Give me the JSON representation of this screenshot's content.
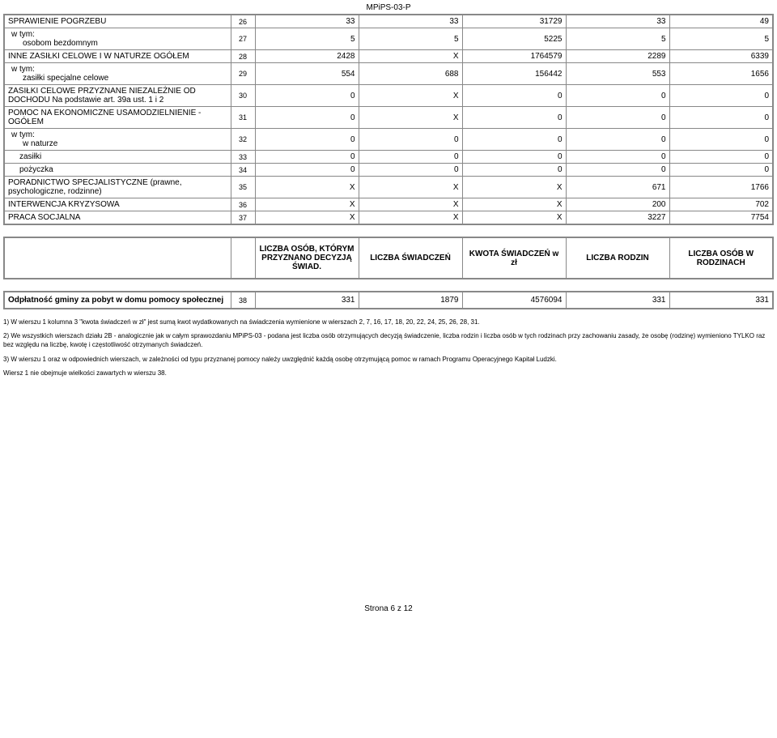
{
  "doc_code": "MPiPS-03-P",
  "table1": {
    "col_widths": {
      "label": 280,
      "num": 30
    },
    "rows": [
      {
        "label": "SPRAWIENIE POGRZEBU",
        "num": "26",
        "c1": "33",
        "c2": "33",
        "c3": "31729",
        "c4": "33",
        "c5": "49"
      },
      {
        "label_lines": [
          "w tym:",
          "osobom bezdomnym"
        ],
        "indent": 1,
        "num": "27",
        "c1": "5",
        "c2": "5",
        "c3": "5225",
        "c4": "5",
        "c5": "5"
      },
      {
        "label": "INNE ZASIŁKI CELOWE I W NATURZE OGÓŁEM",
        "num": "28",
        "c1": "2428",
        "c2": "X",
        "c3": "1764579",
        "c4": "2289",
        "c5": "6339"
      },
      {
        "label_lines": [
          "w tym:",
          "zasiłki specjalne celowe"
        ],
        "indent": 1,
        "num": "29",
        "c1": "554",
        "c2": "688",
        "c3": "156442",
        "c4": "553",
        "c5": "1656"
      },
      {
        "label": "ZASIŁKI CELOWE PRZYZNANE NIEZALEŻNIE OD DOCHODU Na podstawie art. 39a ust. 1 i 2",
        "num": "30",
        "c1": "0",
        "c2": "X",
        "c3": "0",
        "c4": "0",
        "c5": "0"
      },
      {
        "label": "POMOC NA EKONOMICZNE USAMODZIELNIENIE - OGÓŁEM",
        "num": "31",
        "c1": "0",
        "c2": "X",
        "c3": "0",
        "c4": "0",
        "c5": "0"
      },
      {
        "label_lines": [
          "w tym:",
          "w naturze"
        ],
        "indent": 1,
        "num": "32",
        "c1": "0",
        "c2": "0",
        "c3": "0",
        "c4": "0",
        "c5": "0"
      },
      {
        "label": "zasiłki",
        "indent": 1,
        "num": "33",
        "c1": "0",
        "c2": "0",
        "c3": "0",
        "c4": "0",
        "c5": "0"
      },
      {
        "label": "pożyczka",
        "indent": 1,
        "num": "34",
        "c1": "0",
        "c2": "0",
        "c3": "0",
        "c4": "0",
        "c5": "0"
      },
      {
        "label": "PORADNICTWO SPECJALISTYCZNE (prawne, psychologiczne, rodzinne)",
        "num": "35",
        "c1": "X",
        "c2": "X",
        "c3": "X",
        "c4": "671",
        "c5": "1766"
      },
      {
        "label": "INTERWENCJA KRYZYSOWA",
        "num": "36",
        "c1": "X",
        "c2": "X",
        "c3": "X",
        "c4": "200",
        "c5": "702"
      },
      {
        "label": "PRACA SOCJALNA",
        "num": "37",
        "c1": "X",
        "c2": "X",
        "c3": "X",
        "c4": "3227",
        "c5": "7754"
      }
    ]
  },
  "header2": {
    "h1": "LICZBA OSÓB, KTÓRYM PRZYZNANO DECYZJĄ ŚWIAD.",
    "h2": "LICZBA ŚWIADCZEŃ",
    "h3": "KWOTA ŚWIADCZEŃ w zł",
    "h4": "LICZBA RODZIN",
    "h5": "LICZBA OSÓB W RODZINACH"
  },
  "table2": {
    "row": {
      "label": "Odpłatność gminy za pobyt w domu pomocy społecznej",
      "num": "38",
      "c1": "331",
      "c2": "1879",
      "c3": "4576094",
      "c4": "331",
      "c5": "331"
    }
  },
  "notes": {
    "n1": "1) W wierszu 1 kolumna 3 \"kwota świadczeń w zł\" jest sumą kwot wydatkowanych na świadczenia wymienione w wierszach 2, 7, 16, 17, 18, 20, 22, 24, 25, 26, 28, 31.",
    "n2": "2) We wszystkich wierszach działu 2B - analogicznie jak w całym sprawozdaniu MPiPS-03 - podana jest liczba osób otrzymujących decyzją świadczenie, liczba rodzin i liczba osób w tych rodzinach przy zachowaniu zasady, że osobę (rodzinę) wymieniono TYLKO raz bez względu na liczbę, kwotę i częstotliwość otrzymanych świadczeń.",
    "n3": "3) W wierszu 1 oraz w odpowiednich wierszach, w zależności od typu przyznanej pomocy należy uwzględnić każdą osobę otrzymującą pomoc w ramach Programu Operacyjnego Kapitał Ludzki.",
    "n4": "Wiersz 1 nie obejmuje wielkości zawartych w wierszu 38."
  },
  "footer": "Strona 6 z 12"
}
